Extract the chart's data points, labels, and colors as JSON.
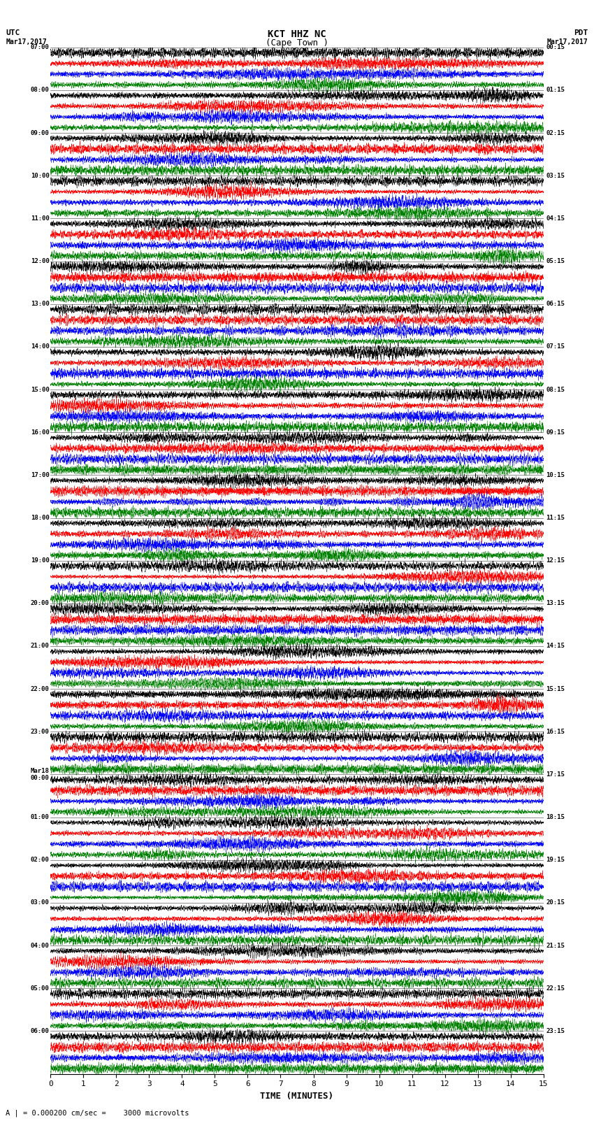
{
  "title_line1": "KCT HHZ NC",
  "title_line2": "(Cape Town )",
  "scale_text": "I = 0.000200 cm/sec",
  "left_label": "UTC",
  "right_label": "PDT",
  "date_left": "Mar17,2017",
  "date_right": "Mar17,2017",
  "utc_times": [
    "07:00",
    "08:00",
    "09:00",
    "10:00",
    "11:00",
    "12:00",
    "13:00",
    "14:00",
    "15:00",
    "16:00",
    "17:00",
    "18:00",
    "19:00",
    "20:00",
    "21:00",
    "22:00",
    "23:00",
    "Mar18\n00:00",
    "01:00",
    "02:00",
    "03:00",
    "04:00",
    "05:00",
    "06:00"
  ],
  "pdt_times": [
    "00:15",
    "01:15",
    "02:15",
    "03:15",
    "04:15",
    "05:15",
    "06:15",
    "07:15",
    "08:15",
    "09:15",
    "10:15",
    "11:15",
    "12:15",
    "13:15",
    "14:15",
    "15:15",
    "16:15",
    "17:15",
    "18:15",
    "19:15",
    "20:15",
    "21:15",
    "22:15",
    "23:15"
  ],
  "xlabel": "TIME (MINUTES)",
  "xmin": 0,
  "xmax": 15,
  "xticks": [
    0,
    1,
    2,
    3,
    4,
    5,
    6,
    7,
    8,
    9,
    10,
    11,
    12,
    13,
    14,
    15
  ],
  "n_rows": 24,
  "colors": [
    "black",
    "red",
    "blue",
    "green"
  ],
  "annotation": "A | = 0.000200 cm/sec =    3000 microvolts",
  "fig_width": 8.5,
  "fig_height": 16.13,
  "dpi": 100
}
